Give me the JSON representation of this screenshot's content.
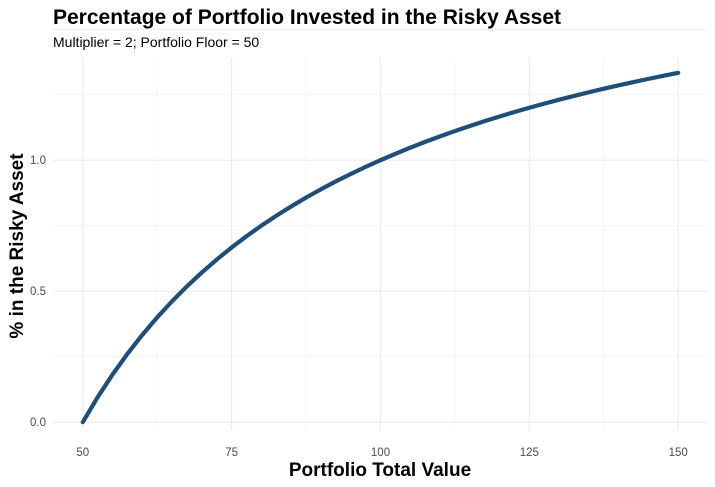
{
  "chart_data": {
    "type": "line",
    "title": "Percentage of Portfolio Invested in the Risky Asset",
    "subtitle": "Multiplier = 2; Portfolio Floor = 50",
    "xlabel": "Portfolio Total Value",
    "ylabel": "% in the Risky Asset",
    "xlim": [
      45,
      155
    ],
    "ylim": [
      -0.03,
      1.39
    ],
    "x_ticks": [
      50,
      75,
      100,
      125,
      150
    ],
    "x_tick_labels": [
      "50",
      "75",
      "100",
      "125",
      "150"
    ],
    "y_ticks": [
      0,
      0.5,
      1,
      1.5
    ],
    "y_tick_labels": [
      "0.0",
      "0.5",
      "1.0"
    ],
    "grid": true,
    "line_color": "#1f4e79",
    "series": [
      {
        "x": [
          50,
          52.5,
          55,
          57.5,
          60,
          62.5,
          65,
          67.5,
          70,
          72.5,
          75,
          77.5,
          80,
          82.5,
          85,
          87.5,
          90,
          92.5,
          95,
          97.5,
          100,
          102.5,
          105,
          107.5,
          110,
          112.5,
          115,
          117.5,
          120,
          122.5,
          125,
          127.5,
          130,
          132.5,
          135,
          137.5,
          140,
          142.5,
          145,
          147.5,
          150
        ],
        "values": [
          0,
          0.0952,
          0.1818,
          0.2609,
          0.3333,
          0.4,
          0.4615,
          0.5185,
          0.5714,
          0.6207,
          0.6667,
          0.7097,
          0.75,
          0.7879,
          0.8235,
          0.8571,
          0.8889,
          0.9189,
          0.9474,
          0.9744,
          1.0,
          1.0244,
          1.0476,
          1.0698,
          1.0909,
          1.1111,
          1.1304,
          1.1489,
          1.1667,
          1.1837,
          1.2,
          1.2157,
          1.2308,
          1.2453,
          1.2593,
          1.2727,
          1.2857,
          1.2982,
          1.3103,
          1.322,
          1.3333
        ]
      }
    ]
  }
}
